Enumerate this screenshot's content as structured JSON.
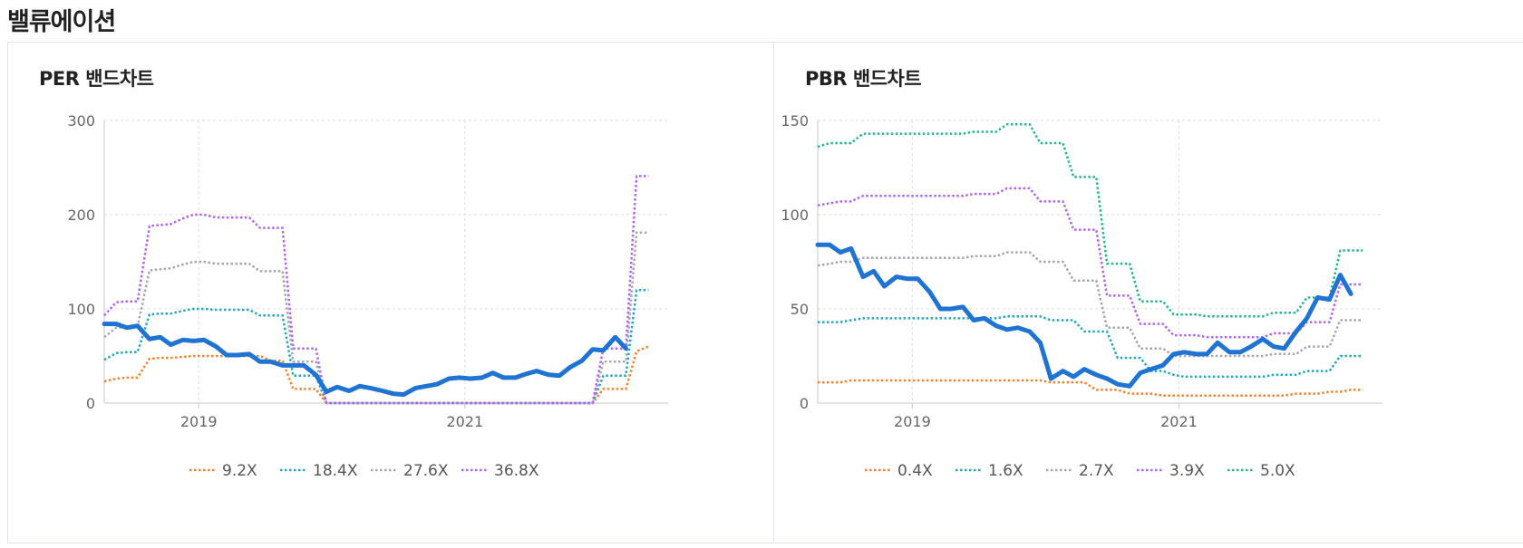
{
  "section_title": "밸류에이션",
  "colors": {
    "actual": "#1f73d2",
    "band_1": "#f5822b",
    "band_2": "#22a8c0",
    "band_3": "#a6a6ae",
    "band_4": "#b264f2",
    "band_5": "#22b890",
    "grid": "#dedede",
    "axis": "#c8c8c8"
  },
  "charts": {
    "per": {
      "title": "PER 밴드차트"
    },
    "pbr": {
      "title": "PBR 밴드차트"
    }
  },
  "chart_data": [
    {
      "id": "per",
      "type": "line",
      "title": "PER 밴드차트",
      "xlabel": "",
      "ylabel": "",
      "x": [
        2018.29,
        2018.38,
        2018.46,
        2018.54,
        2018.63,
        2018.71,
        2018.79,
        2018.88,
        2018.96,
        2019.04,
        2019.13,
        2019.21,
        2019.29,
        2019.38,
        2019.46,
        2019.54,
        2019.63,
        2019.71,
        2019.79,
        2019.88,
        2019.96,
        2020.04,
        2020.13,
        2020.21,
        2020.29,
        2020.38,
        2020.46,
        2020.54,
        2020.63,
        2020.71,
        2020.79,
        2020.88,
        2020.96,
        2021.04,
        2021.13,
        2021.21,
        2021.29,
        2021.38,
        2021.46,
        2021.54,
        2021.63,
        2021.71,
        2021.79,
        2021.88,
        2021.96,
        2022.04,
        2022.13,
        2022.21,
        2022.29,
        2022.38
      ],
      "xlim": [
        2018.29,
        2022.5
      ],
      "ylim": [
        0,
        300
      ],
      "yticks": [
        0,
        100,
        200,
        300
      ],
      "xticks": [
        2019,
        2021
      ],
      "xtick_labels": [
        "2019",
        "2021"
      ],
      "grid": true,
      "legend": "bottom",
      "series": [
        {
          "name": "9.2X",
          "style": "dotted",
          "color": "band_1",
          "values": [
            23,
            26,
            27,
            27,
            47,
            48,
            48,
            49,
            50,
            50,
            50,
            50,
            50,
            50,
            50,
            45,
            45,
            15,
            15,
            15,
            0,
            0,
            0,
            0,
            0,
            0,
            0,
            0,
            0,
            0,
            0,
            0,
            0,
            0,
            0,
            0,
            0,
            0,
            0,
            0,
            0,
            0,
            0,
            0,
            0,
            15,
            15,
            15,
            55,
            60
          ]
        },
        {
          "name": "18.4X",
          "style": "dotted",
          "color": "band_2",
          "values": [
            46,
            53,
            54,
            54,
            94,
            95,
            95,
            98,
            100,
            100,
            99,
            99,
            99,
            99,
            93,
            93,
            93,
            29,
            29,
            29,
            0,
            0,
            0,
            0,
            0,
            0,
            0,
            0,
            0,
            0,
            0,
            0,
            0,
            0,
            0,
            0,
            0,
            0,
            0,
            0,
            0,
            0,
            0,
            0,
            0,
            29,
            29,
            29,
            120,
            120
          ]
        },
        {
          "name": "27.6X",
          "style": "dotted",
          "color": "band_3",
          "values": [
            70,
            80,
            81,
            81,
            141,
            142,
            143,
            147,
            150,
            150,
            148,
            148,
            148,
            148,
            140,
            140,
            140,
            44,
            44,
            44,
            0,
            0,
            0,
            0,
            0,
            0,
            0,
            0,
            0,
            0,
            0,
            0,
            0,
            0,
            0,
            0,
            0,
            0,
            0,
            0,
            0,
            0,
            0,
            0,
            0,
            44,
            44,
            44,
            181,
            181
          ]
        },
        {
          "name": "36.8X",
          "style": "dotted",
          "color": "band_4",
          "values": [
            93,
            107,
            108,
            108,
            188,
            189,
            190,
            196,
            200,
            200,
            197,
            197,
            197,
            197,
            186,
            186,
            186,
            58,
            58,
            58,
            0,
            0,
            0,
            0,
            0,
            0,
            0,
            0,
            0,
            0,
            0,
            0,
            0,
            0,
            0,
            0,
            0,
            0,
            0,
            0,
            0,
            0,
            0,
            0,
            0,
            58,
            58,
            58,
            241,
            241
          ]
        },
        {
          "name": "",
          "style": "solid",
          "color": "actual",
          "values": [
            84,
            84,
            80,
            82,
            68,
            70,
            62,
            67,
            66,
            67,
            60,
            51,
            51,
            52,
            44,
            44,
            40,
            40,
            40,
            30,
            12,
            17,
            13,
            18,
            16,
            13,
            10,
            9,
            16,
            18,
            20,
            26,
            27,
            26,
            27,
            32,
            27,
            27,
            31,
            34,
            30,
            29,
            38,
            45,
            57,
            56,
            70,
            58,
            null,
            null
          ]
        }
      ]
    },
    {
      "id": "pbr",
      "type": "line",
      "title": "PBR 밴드차트",
      "xlabel": "",
      "ylabel": "",
      "x": [
        2018.29,
        2018.38,
        2018.46,
        2018.54,
        2018.63,
        2018.71,
        2018.79,
        2018.88,
        2018.96,
        2019.04,
        2019.13,
        2019.21,
        2019.29,
        2019.38,
        2019.46,
        2019.54,
        2019.63,
        2019.71,
        2019.79,
        2019.88,
        2019.96,
        2020.04,
        2020.13,
        2020.21,
        2020.29,
        2020.38,
        2020.46,
        2020.54,
        2020.63,
        2020.71,
        2020.79,
        2020.88,
        2020.96,
        2021.04,
        2021.13,
        2021.21,
        2021.29,
        2021.38,
        2021.46,
        2021.54,
        2021.63,
        2021.71,
        2021.79,
        2021.88,
        2021.96,
        2022.04,
        2022.13,
        2022.21,
        2022.29,
        2022.38
      ],
      "xlim": [
        2018.29,
        2022.5
      ],
      "ylim": [
        0,
        150
      ],
      "yticks": [
        0,
        50,
        100,
        150
      ],
      "xticks": [
        2019,
        2021
      ],
      "xtick_labels": [
        "2019",
        "2021"
      ],
      "grid": true,
      "legend": "bottom",
      "series": [
        {
          "name": "0.4X",
          "style": "dotted",
          "color": "band_1",
          "values": [
            11,
            11,
            11,
            12,
            12,
            12,
            12,
            12,
            12,
            12,
            12,
            12,
            12,
            12,
            12,
            12,
            12,
            12,
            12,
            12,
            12,
            11,
            11,
            11,
            11,
            7,
            7,
            7,
            5,
            5,
            5,
            4,
            4,
            4,
            4,
            4,
            4,
            4,
            4,
            4,
            4,
            4,
            4,
            5,
            5,
            5,
            6,
            6,
            7,
            7
          ]
        },
        {
          "name": "1.6X",
          "style": "dotted",
          "color": "band_2",
          "values": [
            43,
            43,
            43,
            44,
            45,
            45,
            45,
            45,
            45,
            45,
            45,
            45,
            45,
            45,
            45,
            45,
            45,
            46,
            46,
            46,
            46,
            44,
            44,
            44,
            38,
            38,
            38,
            24,
            24,
            24,
            17,
            17,
            15,
            14,
            14,
            14,
            14,
            14,
            14,
            14,
            14,
            15,
            15,
            15,
            17,
            17,
            17,
            25,
            25,
            25
          ]
        },
        {
          "name": "2.7X",
          "style": "dotted",
          "color": "band_3",
          "values": [
            73,
            74,
            75,
            75,
            77,
            77,
            77,
            77,
            77,
            77,
            77,
            77,
            77,
            77,
            78,
            78,
            78,
            80,
            80,
            80,
            75,
            75,
            75,
            65,
            65,
            65,
            40,
            40,
            40,
            29,
            29,
            29,
            25,
            25,
            25,
            25,
            25,
            25,
            25,
            25,
            25,
            26,
            26,
            26,
            30,
            30,
            30,
            44,
            44,
            44
          ]
        },
        {
          "name": "3.9X",
          "style": "dotted",
          "color": "band_4",
          "values": [
            105,
            106,
            107,
            107,
            110,
            110,
            110,
            110,
            110,
            110,
            110,
            110,
            110,
            110,
            111,
            111,
            111,
            114,
            114,
            114,
            107,
            107,
            107,
            92,
            92,
            92,
            57,
            57,
            57,
            42,
            42,
            42,
            36,
            36,
            36,
            35,
            35,
            35,
            35,
            35,
            35,
            37,
            37,
            37,
            43,
            43,
            43,
            63,
            63,
            63
          ]
        },
        {
          "name": "5.0X",
          "style": "dotted",
          "color": "band_5",
          "values": [
            136,
            138,
            138,
            138,
            143,
            143,
            143,
            143,
            143,
            143,
            143,
            143,
            143,
            143,
            144,
            144,
            144,
            148,
            148,
            148,
            138,
            138,
            138,
            120,
            120,
            120,
            74,
            74,
            74,
            54,
            54,
            54,
            47,
            47,
            47,
            46,
            46,
            46,
            46,
            46,
            46,
            48,
            48,
            48,
            56,
            56,
            56,
            81,
            81,
            81
          ]
        },
        {
          "name": "",
          "style": "solid",
          "color": "actual",
          "values": [
            84,
            84,
            80,
            82,
            67,
            70,
            62,
            67,
            66,
            66,
            59,
            50,
            50,
            51,
            44,
            45,
            41,
            39,
            40,
            38,
            32,
            13,
            17,
            14,
            18,
            15,
            13,
            10,
            9,
            16,
            18,
            20,
            26,
            27,
            26,
            26,
            32,
            27,
            27,
            30,
            34,
            30,
            29,
            38,
            45,
            56,
            55,
            68,
            58,
            null
          ]
        }
      ]
    }
  ]
}
